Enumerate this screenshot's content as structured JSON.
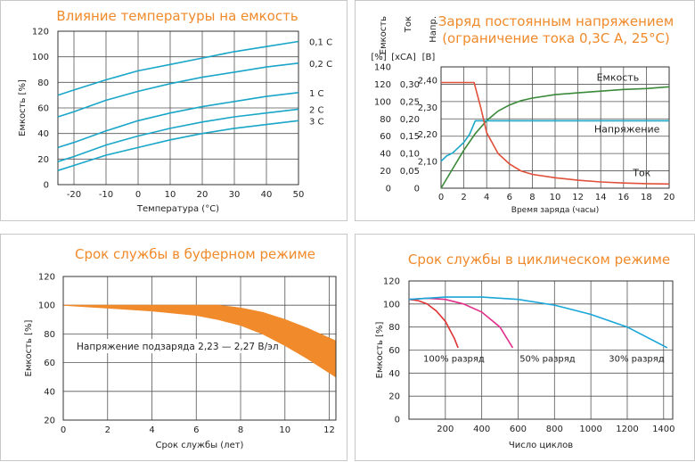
{
  "chart_data": [
    {
      "type": "line",
      "title": "Влияние температуры на емкость",
      "xlabel": "Температура (°C)",
      "ylabel": "Емкость [%]",
      "xlim": [
        -25,
        50
      ],
      "ylim": [
        0,
        120
      ],
      "xticks": [
        "-20",
        "-10",
        "0",
        "10",
        "20",
        "30",
        "40",
        "50"
      ],
      "yticks": [
        "0",
        "20",
        "40",
        "60",
        "80",
        "100",
        "120"
      ],
      "grid": true,
      "color": "#1aa6c8",
      "series": [
        {
          "name": "0,1 C",
          "x": [
            -25,
            -20,
            -10,
            0,
            10,
            20,
            30,
            40,
            50
          ],
          "values": [
            70,
            74,
            82,
            89,
            94,
            99,
            104,
            108,
            112
          ]
        },
        {
          "name": "0,2 C",
          "x": [
            -25,
            -20,
            -10,
            0,
            10,
            20,
            30,
            40,
            50
          ],
          "values": [
            53,
            57,
            66,
            73,
            79,
            84,
            88,
            92,
            95
          ]
        },
        {
          "name": "1 C",
          "x": [
            -25,
            -20,
            -10,
            0,
            10,
            20,
            30,
            40,
            50
          ],
          "values": [
            29,
            33,
            42,
            50,
            56,
            61,
            65,
            69,
            72
          ]
        },
        {
          "name": "2 C",
          "x": [
            -25,
            -20,
            -10,
            0,
            10,
            20,
            30,
            40,
            50
          ],
          "values": [
            18,
            22,
            31,
            38,
            44,
            49,
            53,
            56,
            59
          ]
        },
        {
          "name": "3 C",
          "x": [
            -25,
            -20,
            -10,
            0,
            10,
            20,
            30,
            40,
            50
          ],
          "values": [
            11,
            15,
            23,
            29,
            35,
            40,
            44,
            47,
            50
          ]
        }
      ]
    },
    {
      "type": "line",
      "title": "Заряд постоянным напряжением",
      "subtitle": "(ограничение тока 0,3С А, 25°С)",
      "xlabel": "Время заряда (часы)",
      "xlim": [
        0,
        20
      ],
      "xticks": [
        "0",
        "2",
        "4",
        "6",
        "8",
        "10",
        "12",
        "14",
        "16",
        "18",
        "20"
      ],
      "axes": [
        {
          "name": "Емкость",
          "unit": "[%]",
          "ticks": [
            "0",
            "20",
            "40",
            "60",
            "80",
            "100",
            "120",
            "140"
          ],
          "range": [
            0,
            140
          ]
        },
        {
          "name": "Ток",
          "unit": "[xCA]",
          "ticks": [
            "0",
            "0,05",
            "0,10",
            "0,15",
            "0,20",
            "0,25",
            "0,30"
          ],
          "range": [
            0,
            0.35
          ]
        },
        {
          "name": "Напр.",
          "unit": "[В]",
          "ticks": [
            "2,10",
            "2,20",
            "2,30",
            "2,40"
          ],
          "range": [
            2.0,
            2.45
          ]
        }
      ],
      "grid": true,
      "series": [
        {
          "name": "Емкость",
          "color": "#3a8a3a",
          "x": [
            0,
            1,
            2,
            3,
            4,
            5,
            6,
            7,
            8,
            10,
            12,
            14,
            16,
            18,
            20
          ],
          "values": [
            0,
            22,
            44,
            63,
            78,
            89,
            96,
            101,
            104,
            108,
            110,
            112,
            114,
            115,
            117
          ]
        },
        {
          "name": "Напряжение",
          "color": "#1aa6c8",
          "x": [
            0,
            0.5,
            1,
            1.5,
            2,
            2.5,
            3,
            20
          ],
          "values": [
            2.1,
            2.12,
            2.13,
            2.15,
            2.17,
            2.2,
            2.25,
            2.25
          ]
        },
        {
          "name": "Ток",
          "color": "#e0503a",
          "x": [
            0,
            2.9,
            3.5,
            4,
            5,
            6,
            7,
            8,
            10,
            12,
            14,
            16,
            18,
            20
          ],
          "values": [
            0.305,
            0.305,
            0.23,
            0.16,
            0.1,
            0.07,
            0.05,
            0.04,
            0.03,
            0.023,
            0.018,
            0.015,
            0.013,
            0.012
          ]
        }
      ]
    },
    {
      "type": "area",
      "title": "Срок службы в буферном режиме",
      "xlabel": "Срок службы (лет)",
      "ylabel": "Емкость [%]",
      "xlim": [
        0,
        12.3
      ],
      "ylim": [
        20,
        120
      ],
      "xticks": [
        "0",
        "2",
        "4",
        "6",
        "8",
        "10",
        "12"
      ],
      "yticks": [
        "20",
        "40",
        "60",
        "80",
        "100",
        "120"
      ],
      "annotation": "Напряжение подзаряда 2,23 — 2,27 В/эл",
      "grid": true,
      "color": "#f08a2a",
      "band": {
        "x": [
          0,
          2,
          4,
          6,
          7,
          8,
          9,
          10,
          11,
          12.3
        ],
        "upper": [
          100,
          100,
          100,
          100,
          100,
          98,
          95,
          90,
          84,
          75
        ],
        "lower": [
          100,
          98,
          96,
          93,
          90,
          86,
          80,
          72,
          63,
          50
        ]
      }
    },
    {
      "type": "line",
      "title": "Срок службы в циклическом режиме",
      "xlabel": "Число циклов",
      "ylabel": "Емкость [%]",
      "xlim": [
        0,
        1450
      ],
      "ylim": [
        0,
        120
      ],
      "xticks": [
        "0",
        "200",
        "400",
        "600",
        "800",
        "1000",
        "1200",
        "1400"
      ],
      "yticks": [
        "0",
        "20",
        "40",
        "60",
        "80",
        "100",
        "120"
      ],
      "grid": true,
      "series": [
        {
          "name": "100% разряд",
          "color": "#e03030",
          "x": [
            0,
            50,
            100,
            150,
            200,
            250,
            270
          ],
          "values": [
            104,
            103,
            100,
            94,
            85,
            70,
            62
          ]
        },
        {
          "name": "50% разряд",
          "color": "#e0308a",
          "x": [
            0,
            100,
            200,
            300,
            400,
            500,
            570
          ],
          "values": [
            104,
            105,
            104,
            100,
            93,
            80,
            62
          ]
        },
        {
          "name": "30% разряд",
          "color": "#1aa6d8",
          "x": [
            0,
            200,
            400,
            600,
            800,
            1000,
            1200,
            1420
          ],
          "values": [
            104,
            106,
            106,
            104,
            99,
            91,
            80,
            62
          ]
        }
      ]
    }
  ]
}
